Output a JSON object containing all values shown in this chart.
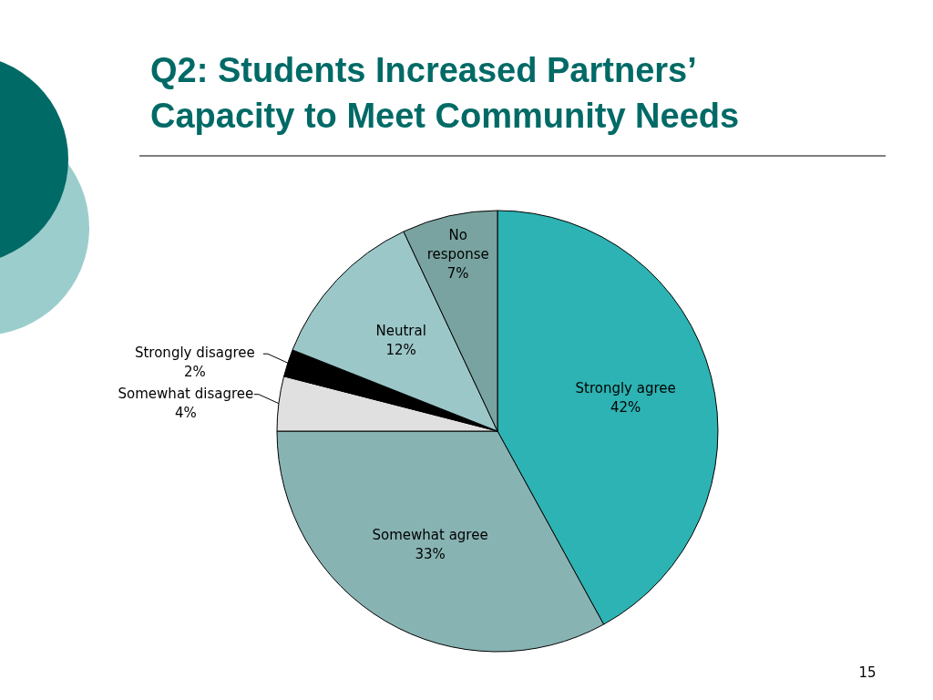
{
  "chart_data": {
    "type": "pie",
    "title": "Q2: Students Increased Partners’ Capacity to Meet Community Needs",
    "categories": [
      "Strongly agree",
      "Somewhat agree",
      "Somewhat disagree",
      "Strongly disagree",
      "Neutral",
      "No response"
    ],
    "values": [
      42,
      33,
      4,
      2,
      12,
      7
    ],
    "value_labels": [
      "42%",
      "33%",
      "4%",
      "2%",
      "12%",
      "7%"
    ],
    "colors": [
      "#2db3b3",
      "#88b3b3",
      "#e0e0e0",
      "#000000",
      "#9cc7c8",
      "#79a3a0"
    ],
    "annotations": [
      "15"
    ]
  }
}
